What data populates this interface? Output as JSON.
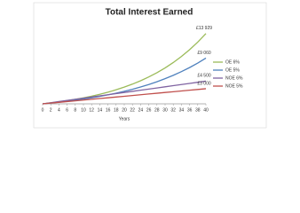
{
  "chart_data": {
    "type": "line",
    "title": "Total Interest Earned",
    "x_label": "Years",
    "x": [
      0,
      2,
      4,
      6,
      8,
      10,
      12,
      14,
      16,
      18,
      20,
      22,
      24,
      26,
      28,
      30,
      32,
      34,
      36,
      38,
      40
    ],
    "xlim": [
      0,
      40
    ],
    "xticks": [
      0,
      2,
      4,
      6,
      8,
      10,
      12,
      14,
      16,
      18,
      20,
      22,
      24,
      26,
      28,
      30,
      32,
      34,
      36,
      38,
      40
    ],
    "ylim": [
      0,
      16000
    ],
    "grid": false,
    "legend": "right",
    "series": [
      {
        "name": "OE 6%",
        "color": "#9bbb59",
        "values": [
          0,
          185,
          394,
          628,
          891,
          1186,
          1518,
          1891,
          2311,
          2782,
          3311,
          3905,
          4573,
          5324,
          6168,
          7115,
          8180,
          9377,
          10721,
          12231,
          13929
        ],
        "value_labels": [
          null,
          null,
          null,
          null,
          null,
          null,
          null,
          null,
          null,
          null,
          null,
          null,
          null,
          null,
          null,
          null,
          null,
          null,
          null,
          null,
          "£13 929"
        ]
      },
      {
        "name": "OE 5%",
        "color": "#4f81bd",
        "values": [
          0,
          154,
          323,
          510,
          716,
          943,
          1194,
          1470,
          1774,
          2110,
          2480,
          2888,
          3338,
          3834,
          4380,
          4983,
          5647,
          6380,
          7188,
          8078,
          9060
        ],
        "value_labels": [
          null,
          null,
          null,
          null,
          null,
          null,
          null,
          null,
          null,
          null,
          null,
          null,
          null,
          null,
          null,
          null,
          null,
          null,
          null,
          null,
          "£9 060"
        ]
      },
      {
        "name": "NOE 6%",
        "color": "#8064a2",
        "values": [
          0,
          225,
          450,
          675,
          900,
          1125,
          1350,
          1575,
          1800,
          2025,
          2250,
          2475,
          2700,
          2925,
          3150,
          3375,
          3600,
          3825,
          4050,
          4275,
          4500
        ],
        "value_labels": [
          null,
          null,
          null,
          null,
          null,
          null,
          null,
          null,
          null,
          null,
          null,
          null,
          null,
          null,
          null,
          null,
          null,
          null,
          null,
          null,
          "£4 500"
        ]
      },
      {
        "name": "NOE 5%",
        "color": "#c0504d",
        "values": [
          0,
          150,
          300,
          450,
          600,
          750,
          900,
          1050,
          1200,
          1350,
          1500,
          1650,
          1800,
          1950,
          2100,
          2250,
          2400,
          2550,
          2700,
          2850,
          3000
        ],
        "value_labels": [
          null,
          null,
          null,
          null,
          null,
          null,
          null,
          null,
          null,
          null,
          null,
          null,
          null,
          null,
          null,
          null,
          null,
          null,
          null,
          null,
          "£3 000"
        ]
      }
    ]
  }
}
